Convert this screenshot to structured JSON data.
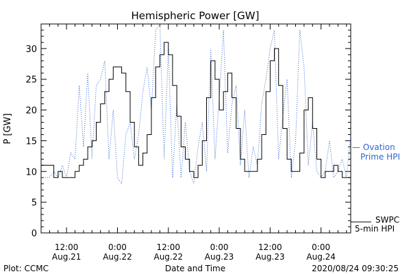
{
  "chart_data": {
    "type": "line",
    "title": "Hemispheric Power [GW]",
    "xlabel": "Date and Time",
    "ylabel": "P [GW]",
    "ylim": [
      0,
      34
    ],
    "xlim": [
      -18,
      55
    ],
    "x_unit": "hours from 2020-08-22 00:00",
    "yticks": [
      0,
      5,
      10,
      15,
      20,
      25,
      30
    ],
    "xticks": [
      {
        "x": -12,
        "line1": "12:00",
        "line2": "Aug.21"
      },
      {
        "x": 0,
        "line1": "0:00",
        "line2": "Aug.22"
      },
      {
        "x": 12,
        "line1": "12:00",
        "line2": "Aug.22"
      },
      {
        "x": 24,
        "line1": "0:00",
        "line2": "Aug.23"
      },
      {
        "x": 36,
        "line1": "12:00",
        "line2": "Aug.23"
      },
      {
        "x": 48,
        "line1": "0:00",
        "line2": "Aug.24"
      }
    ],
    "grid": false,
    "series": [
      {
        "name": "SWPC 5-min HPI",
        "color": "#000000",
        "style": "solid",
        "points": [
          [
            -18,
            11
          ],
          [
            -16,
            11
          ],
          [
            -15,
            9
          ],
          [
            -14,
            10
          ],
          [
            -13,
            9
          ],
          [
            -12,
            9
          ],
          [
            -10,
            10
          ],
          [
            -9,
            11
          ],
          [
            -8,
            12
          ],
          [
            -7,
            14
          ],
          [
            -6,
            15
          ],
          [
            -5,
            18
          ],
          [
            -4,
            21
          ],
          [
            -3,
            23
          ],
          [
            -2,
            25
          ],
          [
            -1,
            27
          ],
          [
            0,
            27
          ],
          [
            1,
            26
          ],
          [
            2,
            23
          ],
          [
            3,
            18
          ],
          [
            4,
            14
          ],
          [
            5,
            11
          ],
          [
            6,
            13
          ],
          [
            7,
            16
          ],
          [
            8,
            22
          ],
          [
            9,
            27
          ],
          [
            10,
            29
          ],
          [
            11,
            31
          ],
          [
            12,
            29
          ],
          [
            13,
            24
          ],
          [
            14,
            19
          ],
          [
            15,
            14
          ],
          [
            16,
            12
          ],
          [
            17,
            10
          ],
          [
            18,
            9
          ],
          [
            19,
            11
          ],
          [
            20,
            15
          ],
          [
            21,
            22
          ],
          [
            22,
            28
          ],
          [
            23,
            25
          ],
          [
            24,
            20
          ],
          [
            25,
            23
          ],
          [
            26,
            26
          ],
          [
            27,
            22
          ],
          [
            28,
            17
          ],
          [
            29,
            12
          ],
          [
            30,
            10
          ],
          [
            31,
            10
          ],
          [
            32,
            10
          ],
          [
            33,
            12
          ],
          [
            34,
            16
          ],
          [
            35,
            23
          ],
          [
            36,
            28
          ],
          [
            37,
            30
          ],
          [
            38,
            24
          ],
          [
            39,
            17
          ],
          [
            40,
            12
          ],
          [
            41,
            10
          ],
          [
            42,
            10
          ],
          [
            43,
            13
          ],
          [
            44,
            20
          ],
          [
            45,
            22
          ],
          [
            46,
            17
          ],
          [
            47,
            12
          ],
          [
            48,
            9
          ],
          [
            49,
            10
          ],
          [
            50,
            10
          ],
          [
            51,
            11
          ],
          [
            52,
            10
          ],
          [
            53,
            9
          ],
          [
            55,
            9
          ]
        ]
      },
      {
        "name": "Ovation Prime HPI",
        "color": "#3366cc",
        "style": "dotted",
        "points": [
          [
            -18,
            9
          ],
          [
            -16,
            9
          ],
          [
            -15,
            10
          ],
          [
            -14,
            9
          ],
          [
            -13,
            11
          ],
          [
            -12,
            9
          ],
          [
            -11,
            13
          ],
          [
            -10,
            12
          ],
          [
            -9,
            24
          ],
          [
            -8,
            14
          ],
          [
            -7,
            26
          ],
          [
            -6,
            12
          ],
          [
            -5,
            24
          ],
          [
            -4,
            25
          ],
          [
            -3,
            28
          ],
          [
            -2,
            12
          ],
          [
            -1,
            20
          ],
          [
            0,
            9
          ],
          [
            1,
            8
          ],
          [
            2,
            16
          ],
          [
            3,
            18
          ],
          [
            4,
            12
          ],
          [
            5,
            16
          ],
          [
            6,
            23
          ],
          [
            7,
            27
          ],
          [
            8,
            20
          ],
          [
            9,
            33
          ],
          [
            10,
            34
          ],
          [
            11,
            12
          ],
          [
            12,
            30
          ],
          [
            13,
            9
          ],
          [
            14,
            21
          ],
          [
            15,
            9
          ],
          [
            16,
            18
          ],
          [
            17,
            10
          ],
          [
            18,
            8
          ],
          [
            19,
            14
          ],
          [
            20,
            18
          ],
          [
            21,
            10
          ],
          [
            22,
            30
          ],
          [
            23,
            12
          ],
          [
            24,
            22
          ],
          [
            25,
            33
          ],
          [
            26,
            13
          ],
          [
            27,
            21
          ],
          [
            28,
            24
          ],
          [
            29,
            11
          ],
          [
            30,
            20
          ],
          [
            31,
            9
          ],
          [
            32,
            14
          ],
          [
            33,
            11
          ],
          [
            34,
            21
          ],
          [
            35,
            25
          ],
          [
            36,
            30
          ],
          [
            37,
            33
          ],
          [
            38,
            12
          ],
          [
            39,
            19
          ],
          [
            40,
            25
          ],
          [
            41,
            9
          ],
          [
            42,
            15
          ],
          [
            43,
            33
          ],
          [
            44,
            27
          ],
          [
            45,
            11
          ],
          [
            46,
            18
          ],
          [
            47,
            10
          ],
          [
            48,
            9
          ],
          [
            49,
            10
          ],
          [
            50,
            15
          ],
          [
            51,
            9
          ],
          [
            52,
            10
          ],
          [
            53,
            12
          ],
          [
            54,
            9
          ],
          [
            55,
            16
          ]
        ]
      }
    ],
    "legend": [
      {
        "label_line1": "— Ovation",
        "label_line2": "Prime HPI",
        "color": "#3366cc",
        "placement": "right-middle"
      },
      {
        "label_line1": "SWPC",
        "label_line2": "5-min HPI",
        "color": "#000000",
        "placement": "right-bottom"
      }
    ]
  },
  "footer": {
    "left": "Plot: CCMC",
    "center": "Date and Time",
    "right": "2020/08/24 09:30:25"
  }
}
